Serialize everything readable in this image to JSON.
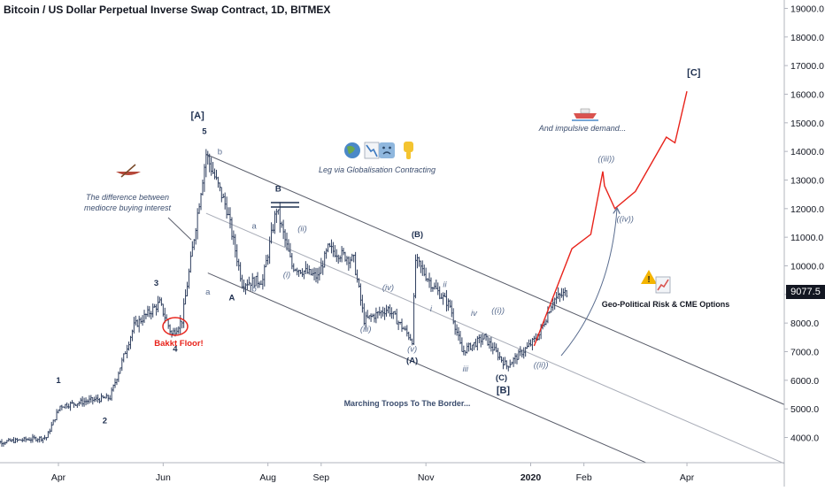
{
  "title": "Bitcoin / US Dollar Perpetual Inverse Swap Contract, 1D, BITMEX",
  "current_price_label": "9077.5",
  "colors": {
    "candle": "#2f3f5f",
    "channel": "#5a5e6b",
    "midline": "#a9adb8",
    "projection": "#e8231b",
    "annotation": "#3b4d6e",
    "wave_label": "#1f3050",
    "red_text": "#e8231b",
    "arc": "#5a6d8f"
  },
  "icons": [
    "canoe-icon",
    "globe-icon",
    "chart-down-icon",
    "sad-face-icon",
    "thumbs-down-icon",
    "speedboat-icon",
    "warning-icon",
    "chart-up-icon"
  ],
  "annotations": {
    "difference": "The difference between\nmediocre buying interest",
    "globalisation": "Leg via Globalisation Contracting",
    "impulsive": "And impulsive demand...",
    "bakkt": "Bakkt Floor!",
    "marching": "Marching Troops To The Border...",
    "geo": "Geo-Political Risk & CME Options"
  },
  "chart_data": {
    "type": "candlestick",
    "symbol": "Bitcoin / US Dollar Perpetual Inverse Swap Contract, 1D, BITMEX",
    "x_ticks": [
      "Apr",
      "Jun",
      "Aug",
      "Sep",
      "Nov",
      "2020",
      "Feb",
      "Apr"
    ],
    "y_ticks": [
      4000,
      5000,
      6000,
      7000,
      8000,
      9000,
      10000,
      11000,
      12000,
      13000,
      14000,
      15000,
      16000,
      17000,
      18000,
      19000
    ],
    "y_tick_labels": [
      "4000.0",
      "5000.0",
      "6000.0",
      "7000.0",
      "8000.0",
      "9000.0",
      "10000.0",
      "11000.0",
      "12000.0",
      "13000.0",
      "14000.0",
      "15000.0",
      "16000.0",
      "17000.0",
      "18000.0",
      "19000.0"
    ],
    "ylim": [
      3150,
      19200
    ],
    "last_price": 9077.5,
    "price_path": [
      [
        "2019-02-20",
        3800
      ],
      [
        "2019-03-25",
        4000
      ],
      [
        "2019-04-02",
        5100
      ],
      [
        "2019-04-20",
        5300
      ],
      [
        "2019-05-01",
        5400
      ],
      [
        "2019-05-15",
        7900
      ],
      [
        "2019-05-30",
        8700
      ],
      [
        "2019-06-06",
        7600
      ],
      [
        "2019-06-12",
        8100
      ],
      [
        "2019-06-26",
        13900
      ],
      [
        "2019-07-08",
        12000
      ],
      [
        "2019-07-17",
        9400
      ],
      [
        "2019-07-29",
        9500
      ],
      [
        "2019-08-06",
        12000
      ],
      [
        "2019-08-15",
        10000
      ],
      [
        "2019-08-30",
        9600
      ],
      [
        "2019-09-05",
        10600
      ],
      [
        "2019-09-20",
        10200
      ],
      [
        "2019-09-26",
        8100
      ],
      [
        "2019-10-10",
        8500
      ],
      [
        "2019-10-24",
        7400
      ],
      [
        "2019-10-26",
        10200
      ],
      [
        "2019-11-05",
        9300
      ],
      [
        "2019-11-15",
        8600
      ],
      [
        "2019-11-22",
        7000
      ],
      [
        "2019-12-05",
        7500
      ],
      [
        "2019-12-18",
        6500
      ],
      [
        "2019-12-31",
        7200
      ],
      [
        "2020-01-06",
        7600
      ],
      [
        "2020-01-14",
        8800
      ],
      [
        "2020-01-22",
        9077.5
      ]
    ],
    "projection": [
      [
        "2020-01-03",
        7200
      ],
      [
        "2020-01-25",
        10600
      ],
      [
        "2020-02-05",
        11100
      ],
      [
        "2020-02-12",
        13300
      ],
      [
        "2020-02-13",
        12800
      ],
      [
        "2020-02-19",
        12000
      ],
      [
        "2020-03-02",
        12600
      ],
      [
        "2020-03-20",
        14500
      ],
      [
        "2020-03-25",
        14300
      ],
      [
        "2020-04-01",
        16100
      ]
    ],
    "wave_labels": [
      {
        "text": "1",
        "date": "2019-04-01",
        "price": 5900
      },
      {
        "text": "2",
        "date": "2019-04-28",
        "price": 4500
      },
      {
        "text": "3",
        "date": "2019-05-28",
        "price": 9300
      },
      {
        "text": "4",
        "date": "2019-06-08",
        "price": 7000
      },
      {
        "text": "5",
        "date": "2019-06-25",
        "price": 14600
      },
      {
        "text": "[A]",
        "date": "2019-06-21",
        "price": 15150
      },
      {
        "text": "b",
        "date": "2019-07-04",
        "price": 13900
      },
      {
        "text": "a",
        "date": "2019-07-24",
        "price": 11300
      },
      {
        "text": "a",
        "date": "2019-06-27",
        "price": 9000
      },
      {
        "text": "A",
        "date": "2019-07-11",
        "price": 8800
      },
      {
        "text": "b",
        "date": "2019-07-24",
        "price": 9100
      },
      {
        "text": "B",
        "date": "2019-08-07",
        "price": 12600
      },
      {
        "text": "(i)",
        "date": "2019-08-12",
        "price": 9600
      },
      {
        "text": "(ii)",
        "date": "2019-08-21",
        "price": 11200
      },
      {
        "text": "(iii)",
        "date": "2019-09-27",
        "price": 7700
      },
      {
        "text": "(iv)",
        "date": "2019-10-10",
        "price": 9150
      },
      {
        "text": "(v)",
        "date": "2019-10-24",
        "price": 7000
      },
      {
        "text": "(A)",
        "date": "2019-10-24",
        "price": 6600
      },
      {
        "text": "(B)",
        "date": "2019-10-27",
        "price": 11000
      },
      {
        "text": "ii",
        "date": "2019-11-12",
        "price": 9250
      },
      {
        "text": "i",
        "date": "2019-11-04",
        "price": 8400
      },
      {
        "text": "iv",
        "date": "2019-11-29",
        "price": 8250
      },
      {
        "text": "iii",
        "date": "2019-11-24",
        "price": 6300
      },
      {
        "text": "((i))",
        "date": "2019-12-13",
        "price": 8350
      },
      {
        "text": "(C)",
        "date": "2019-12-15",
        "price": 6000
      },
      {
        "text": "[B]",
        "date": "2019-12-16",
        "price": 5550
      },
      {
        "text": "((ii))",
        "date": "2020-01-07",
        "price": 6450
      },
      {
        "text": "((iii))",
        "date": "2020-02-14",
        "price": 13650
      },
      {
        "text": "((iv))",
        "date": "2020-02-25",
        "price": 11550
      },
      {
        "text": "[C]",
        "date": "2020-04-05",
        "price": 16650
      }
    ]
  }
}
